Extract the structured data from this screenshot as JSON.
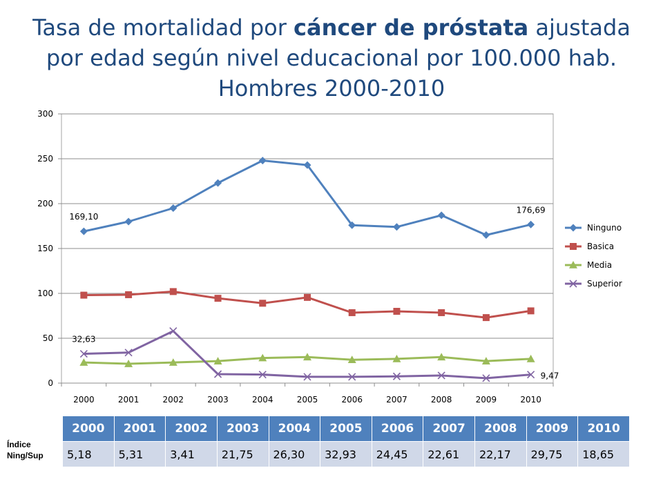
{
  "title": {
    "part1": "Tasa de mortalidad por ",
    "bold": "cáncer de próstata",
    "part2": " ajustada",
    "line2": "por edad según nivel educacional por 100.000 hab.",
    "line3": "Hombres 2000-2010"
  },
  "chart_data": {
    "type": "line",
    "title": "",
    "xlabel": "",
    "ylabel": "",
    "categories": [
      "2000",
      "2001",
      "2002",
      "2003",
      "2004",
      "2005",
      "2006",
      "2007",
      "2008",
      "2009",
      "2010"
    ],
    "ylim": [
      0,
      300
    ],
    "yticks": [
      0,
      50,
      100,
      150,
      200,
      250,
      300
    ],
    "grid": true,
    "legend_position": "right",
    "series": [
      {
        "name": "Ninguno",
        "color": "#4f81bd",
        "marker": "diamond",
        "values": [
          169.1,
          180,
          195,
          223,
          248,
          243,
          176,
          174,
          187,
          165,
          176.69
        ]
      },
      {
        "name": "Basica",
        "color": "#c0504d",
        "marker": "square",
        "values": [
          98,
          98.5,
          102,
          94.5,
          89,
          95.5,
          78.5,
          80,
          78.5,
          73,
          80.5
        ]
      },
      {
        "name": "Media",
        "color": "#9bbb59",
        "marker": "triangle",
        "values": [
          23,
          21.5,
          23,
          24.5,
          28,
          29,
          26,
          27,
          29,
          24.5,
          27
        ]
      },
      {
        "name": "Superior",
        "color": "#8064a2",
        "marker": "x",
        "values": [
          32.63,
          34,
          58,
          10,
          9.5,
          7,
          7,
          7.5,
          8.5,
          5.5,
          9.47
        ]
      }
    ],
    "annotations": [
      {
        "series": 0,
        "index": 0,
        "text": "169,10",
        "pos": "above"
      },
      {
        "series": 0,
        "index": 10,
        "text": "176,69",
        "pos": "above"
      },
      {
        "series": 3,
        "index": 0,
        "text": "32,63",
        "pos": "above"
      },
      {
        "series": 3,
        "index": 10,
        "text": "9,47",
        "pos": "right"
      }
    ]
  },
  "index_table": {
    "label_line1": "Índice",
    "label_line2": "Ning/Sup",
    "years": [
      "2000",
      "2001",
      "2002",
      "2003",
      "2004",
      "2005",
      "2006",
      "2007",
      "2008",
      "2009",
      "2010"
    ],
    "values": [
      "5,18",
      "5,31",
      "3,41",
      "21,75",
      "26,30",
      "32,93",
      "24,45",
      "22,61",
      "22,17",
      "29,75",
      "18,65"
    ]
  }
}
